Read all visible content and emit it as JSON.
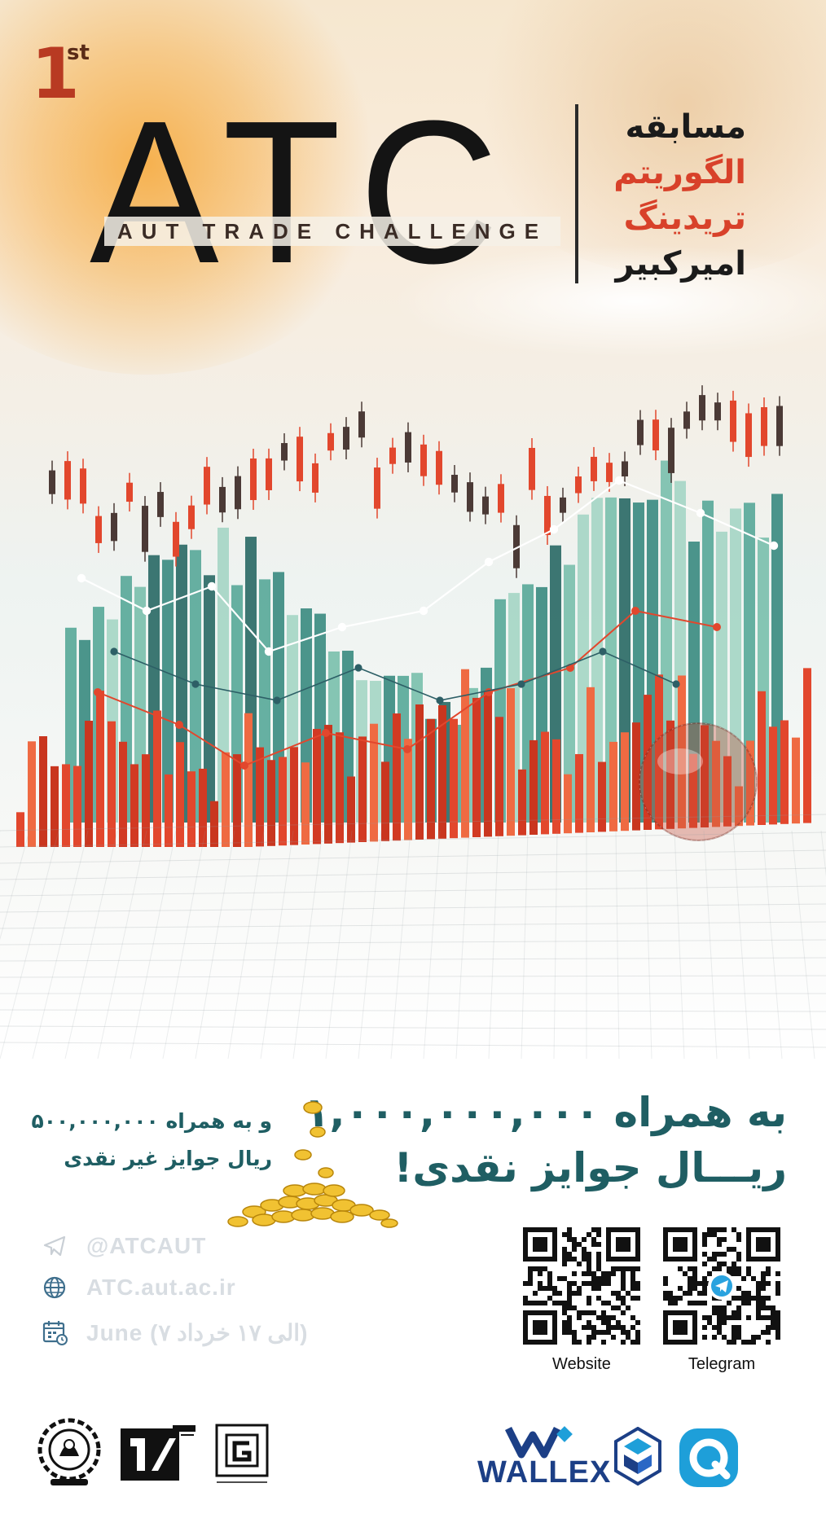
{
  "header": {
    "edition_number": "1",
    "edition_suffix": "st",
    "logo_text": "ATC",
    "logo_subtitle": "AUT TRADE CHALLENGE",
    "title_lines": [
      {
        "text": "مسابقه",
        "color": "#1b1b1b"
      },
      {
        "text": "الگوریتم",
        "color": "#d8412a"
      },
      {
        "text": "تریدینگ",
        "color": "#d8412a"
      },
      {
        "text": "امیرکبیر",
        "color": "#1b1b1b"
      }
    ]
  },
  "prize": {
    "main_line1": "به همراه ۱,۰۰۰,۰۰۰,۰۰۰",
    "main_line2": "ریـــال جوایز نقدی!",
    "secondary_line1": "و به همراه ۵۰۰,۰۰۰,۰۰۰",
    "secondary_line2": "ریال جوایز غیر نقدی"
  },
  "contacts": [
    {
      "icon": "telegram-icon",
      "text": "@ATCAUT"
    },
    {
      "icon": "globe-icon",
      "text": "ATC.aut.ac.ir"
    },
    {
      "icon": "calendar-icon",
      "text": "June (۷ الی ۱۷ خرداد)"
    }
  ],
  "qr_codes": {
    "website_label": "Website",
    "telegram_label": "Telegram"
  },
  "sponsors": {
    "wallex_text": "WALLEX"
  },
  "colors": {
    "accent_red": "#d8412a",
    "teal": "#1f5e63",
    "dark": "#141414",
    "wallex_blue": "#1c3f86",
    "q_blue": "#1e9fd9"
  }
}
